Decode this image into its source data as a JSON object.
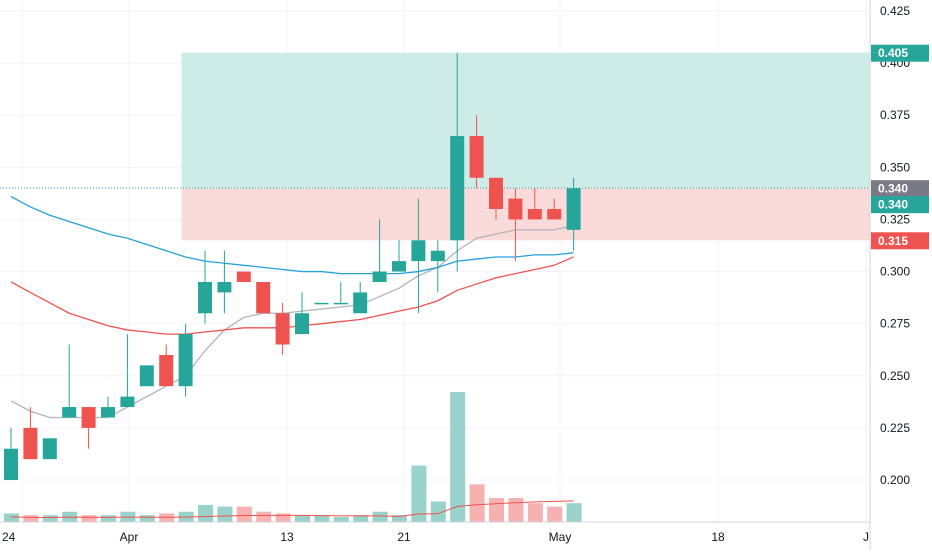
{
  "chart_data": {
    "type": "candlestick",
    "x_tick_labels": [
      "24",
      "Apr",
      "13",
      "21",
      "May",
      "18",
      "J"
    ],
    "y_tick_labels": [
      "0.425",
      "0.400",
      "0.375",
      "0.350",
      "0.325",
      "0.300",
      "0.275",
      "0.250",
      "0.225",
      "0.200"
    ],
    "ylim": [
      0.18,
      0.43
    ],
    "grid": true,
    "candles": [
      {
        "open": 0.2,
        "high": 0.225,
        "low": 0.2,
        "close": 0.215
      },
      {
        "open": 0.225,
        "high": 0.235,
        "low": 0.21,
        "close": 0.21
      },
      {
        "open": 0.21,
        "high": 0.22,
        "low": 0.21,
        "close": 0.22
      },
      {
        "open": 0.23,
        "high": 0.265,
        "low": 0.23,
        "close": 0.235
      },
      {
        "open": 0.235,
        "high": 0.235,
        "low": 0.215,
        "close": 0.225
      },
      {
        "open": 0.23,
        "high": 0.24,
        "low": 0.23,
        "close": 0.235
      },
      {
        "open": 0.235,
        "high": 0.27,
        "low": 0.235,
        "close": 0.24
      },
      {
        "open": 0.245,
        "high": 0.255,
        "low": 0.245,
        "close": 0.255
      },
      {
        "open": 0.26,
        "high": 0.265,
        "low": 0.245,
        "close": 0.245
      },
      {
        "open": 0.245,
        "high": 0.275,
        "low": 0.24,
        "close": 0.27
      },
      {
        "open": 0.28,
        "high": 0.31,
        "low": 0.275,
        "close": 0.295
      },
      {
        "open": 0.29,
        "high": 0.31,
        "low": 0.28,
        "close": 0.295
      },
      {
        "open": 0.3,
        "high": 0.3,
        "low": 0.295,
        "close": 0.295
      },
      {
        "open": 0.295,
        "high": 0.295,
        "low": 0.28,
        "close": 0.28
      },
      {
        "open": 0.28,
        "high": 0.285,
        "low": 0.26,
        "close": 0.265
      },
      {
        "open": 0.27,
        "high": 0.29,
        "low": 0.27,
        "close": 0.28
      },
      {
        "open": 0.285,
        "high": 0.285,
        "low": 0.285,
        "close": 0.285
      },
      {
        "open": 0.285,
        "high": 0.295,
        "low": 0.285,
        "close": 0.285
      },
      {
        "open": 0.28,
        "high": 0.295,
        "low": 0.28,
        "close": 0.29
      },
      {
        "open": 0.295,
        "high": 0.325,
        "low": 0.295,
        "close": 0.3
      },
      {
        "open": 0.3,
        "high": 0.315,
        "low": 0.3,
        "close": 0.305
      },
      {
        "open": 0.305,
        "high": 0.335,
        "low": 0.28,
        "close": 0.315
      },
      {
        "open": 0.305,
        "high": 0.315,
        "low": 0.29,
        "close": 0.31
      },
      {
        "open": 0.315,
        "high": 0.405,
        "low": 0.3,
        "close": 0.365
      },
      {
        "open": 0.365,
        "high": 0.375,
        "low": 0.34,
        "close": 0.345
      },
      {
        "open": 0.345,
        "high": 0.345,
        "low": 0.325,
        "close": 0.33
      },
      {
        "open": 0.335,
        "high": 0.34,
        "low": 0.305,
        "close": 0.325
      },
      {
        "open": 0.33,
        "high": 0.34,
        "low": 0.325,
        "close": 0.325
      },
      {
        "open": 0.33,
        "high": 0.335,
        "low": 0.325,
        "close": 0.325
      },
      {
        "open": 0.32,
        "high": 0.345,
        "low": 0.31,
        "close": 0.34
      }
    ],
    "volume": [
      5,
      4,
      4,
      6,
      4,
      4,
      6,
      4,
      5,
      6,
      10,
      9,
      9,
      6,
      5,
      4,
      4,
      3,
      4,
      6,
      4,
      33,
      12,
      76,
      22,
      14,
      14,
      11,
      9,
      11
    ],
    "moving_averages": [
      {
        "color": "#b2b5be",
        "values": [
          0.238,
          0.233,
          0.23,
          0.23,
          0.23,
          0.23,
          0.235,
          0.24,
          0.245,
          0.25,
          0.262,
          0.272,
          0.278,
          0.28,
          0.28,
          0.281,
          0.282,
          0.283,
          0.284,
          0.288,
          0.292,
          0.298,
          0.302,
          0.31,
          0.316,
          0.318,
          0.32,
          0.32,
          0.32,
          0.322
        ]
      },
      {
        "color": "#ef5350",
        "values": [
          0.295,
          0.29,
          0.285,
          0.28,
          0.277,
          0.274,
          0.272,
          0.271,
          0.27,
          0.27,
          0.271,
          0.272,
          0.273,
          0.273,
          0.273,
          0.274,
          0.275,
          0.276,
          0.277,
          0.279,
          0.281,
          0.283,
          0.286,
          0.291,
          0.294,
          0.297,
          0.299,
          0.301,
          0.303,
          0.307
        ]
      },
      {
        "color": "#26a0da",
        "values": [
          0.336,
          0.331,
          0.327,
          0.324,
          0.321,
          0.318,
          0.316,
          0.313,
          0.31,
          0.307,
          0.305,
          0.304,
          0.303,
          0.302,
          0.301,
          0.3,
          0.3,
          0.299,
          0.299,
          0.299,
          0.299,
          0.3,
          0.302,
          0.305,
          0.306,
          0.307,
          0.307,
          0.308,
          0.308,
          0.309
        ]
      }
    ],
    "position": {
      "target_price": 0.405,
      "entry_price": 0.34,
      "stop_price": 0.315,
      "start_index": 9
    },
    "price_tags": [
      {
        "label": "0.405",
        "value": 0.405,
        "color": "#26a69a"
      },
      {
        "label": "0.340",
        "value": 0.34,
        "color": "#787b86"
      },
      {
        "label": "0.340",
        "value": 0.34,
        "color": "#26a69a"
      },
      {
        "label": "0.315",
        "value": 0.315,
        "color": "#ef5350"
      }
    ],
    "colors": {
      "up": "#26a69a",
      "down": "#ef5350",
      "up_volume": "#98d2cb",
      "down_volume": "#f5b2b0",
      "profit_zone": "#cdebe7",
      "loss_zone": "#fbdbd9",
      "grid": "#f0f3fa",
      "axis_text": "#131722"
    }
  }
}
